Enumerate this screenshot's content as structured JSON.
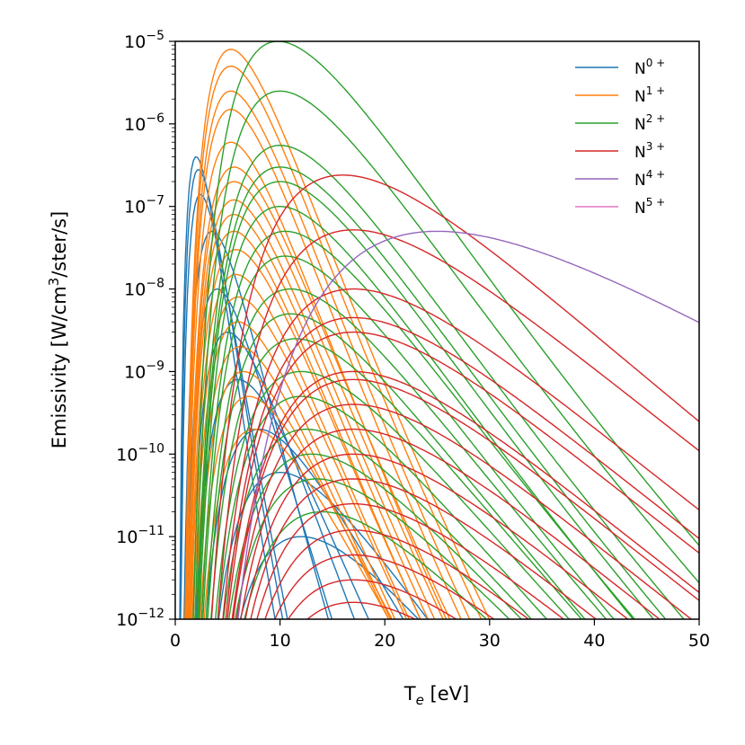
{
  "chart_data": {
    "type": "line",
    "xlabel": {
      "base": "T",
      "sub": "e",
      "suffix": " [eV]"
    },
    "ylabel": {
      "before": "Emissivity [W/cm",
      "sup": "3",
      "after": "/ster/s]"
    },
    "xlim": [
      0,
      50
    ],
    "ylim": [
      1e-12,
      1e-05
    ],
    "yscale": "log",
    "grid": false,
    "legend_position": "top-right",
    "x_ticks": [
      "0",
      "10",
      "20",
      "30",
      "40",
      "50"
    ],
    "y_ticks": [
      {
        "base": "10",
        "exp": "−12",
        "value": 1e-12
      },
      {
        "base": "10",
        "exp": "−11",
        "value": 1e-11
      },
      {
        "base": "10",
        "exp": "−10",
        "value": 1e-10
      },
      {
        "base": "10",
        "exp": "−9",
        "value": 1e-09
      },
      {
        "base": "10",
        "exp": "−8",
        "value": 1e-08
      },
      {
        "base": "10",
        "exp": "−7",
        "value": 1e-07
      },
      {
        "base": "10",
        "exp": "−6",
        "value": 1e-06
      },
      {
        "base": "10",
        "exp": "−5",
        "value": 1e-05
      }
    ],
    "series": [
      {
        "name": "N",
        "charge": "0 +",
        "color": "#1f77b4",
        "lines": [
          {
            "peak_x": 2.0,
            "peak_y": 4e-07
          },
          {
            "peak_x": 2.2,
            "peak_y": 2.8e-07
          },
          {
            "peak_x": 2.4,
            "peak_y": 1.4e-07
          },
          {
            "peak_x": 3.5,
            "peak_y": 5e-08
          },
          {
            "peak_x": 4.0,
            "peak_y": 1e-08
          },
          {
            "peak_x": 5.0,
            "peak_y": 3e-09
          },
          {
            "peak_x": 6.0,
            "peak_y": 8e-10
          },
          {
            "peak_x": 8.0,
            "peak_y": 2e-10
          },
          {
            "peak_x": 10.0,
            "peak_y": 6e-11
          },
          {
            "peak_x": 12.0,
            "peak_y": 1e-11
          }
        ]
      },
      {
        "name": "N",
        "charge": "1 +",
        "color": "#ff7f0e",
        "lines": [
          {
            "peak_x": 5.3,
            "peak_y": 8e-06
          },
          {
            "peak_x": 5.3,
            "peak_y": 5e-06
          },
          {
            "peak_x": 5.3,
            "peak_y": 2.5e-06
          },
          {
            "peak_x": 5.3,
            "peak_y": 1.5e-06
          },
          {
            "peak_x": 5.3,
            "peak_y": 6e-07
          },
          {
            "peak_x": 5.6,
            "peak_y": 3e-07
          },
          {
            "peak_x": 5.6,
            "peak_y": 2e-07
          },
          {
            "peak_x": 5.6,
            "peak_y": 1.2e-07
          },
          {
            "peak_x": 5.6,
            "peak_y": 8e-08
          },
          {
            "peak_x": 5.6,
            "peak_y": 5e-08
          },
          {
            "peak_x": 5.8,
            "peak_y": 3e-08
          },
          {
            "peak_x": 5.8,
            "peak_y": 1.5e-08
          },
          {
            "peak_x": 6.0,
            "peak_y": 8e-09
          },
          {
            "peak_x": 6.0,
            "peak_y": 4e-09
          },
          {
            "peak_x": 6.2,
            "peak_y": 2e-09
          },
          {
            "peak_x": 6.5,
            "peak_y": 1e-09
          },
          {
            "peak_x": 7.0,
            "peak_y": 5e-10
          },
          {
            "peak_x": 7.5,
            "peak_y": 2e-10
          }
        ]
      },
      {
        "name": "N",
        "charge": "2 +",
        "color": "#2ca02c",
        "lines": [
          {
            "peak_x": 9.8,
            "peak_y": 1e-05
          },
          {
            "peak_x": 10.0,
            "peak_y": 2.5e-06
          },
          {
            "peak_x": 10.0,
            "peak_y": 5.5e-07
          },
          {
            "peak_x": 10.0,
            "peak_y": 3e-07
          },
          {
            "peak_x": 10.0,
            "peak_y": 2e-07
          },
          {
            "peak_x": 10.0,
            "peak_y": 1e-07
          },
          {
            "peak_x": 10.5,
            "peak_y": 5e-08
          },
          {
            "peak_x": 10.5,
            "peak_y": 2.5e-08
          },
          {
            "peak_x": 11.0,
            "peak_y": 1e-08
          },
          {
            "peak_x": 11.0,
            "peak_y": 5e-09
          },
          {
            "peak_x": 11.5,
            "peak_y": 2.5e-09
          },
          {
            "peak_x": 12.0,
            "peak_y": 1e-09
          },
          {
            "peak_x": 12.0,
            "peak_y": 5e-10
          },
          {
            "peak_x": 12.5,
            "peak_y": 2e-10
          },
          {
            "peak_x": 13.0,
            "peak_y": 1e-10
          },
          {
            "peak_x": 13.5,
            "peak_y": 5e-11
          },
          {
            "peak_x": 14.0,
            "peak_y": 2e-11
          }
        ]
      },
      {
        "name": "N",
        "charge": "3 +",
        "color": "#d62728",
        "lines": [
          {
            "peak_x": 16.0,
            "peak_y": 2.4e-07
          },
          {
            "peak_x": 17.0,
            "peak_y": 5.2e-08
          },
          {
            "peak_x": 17.0,
            "peak_y": 1e-08
          },
          {
            "peak_x": 17.0,
            "peak_y": 4.5e-09
          },
          {
            "peak_x": 17.0,
            "peak_y": 3e-09
          },
          {
            "peak_x": 17.0,
            "peak_y": 1e-09
          },
          {
            "peak_x": 17.0,
            "peak_y": 8e-10
          },
          {
            "peak_x": 17.0,
            "peak_y": 4e-10
          },
          {
            "peak_x": 17.0,
            "peak_y": 2e-10
          },
          {
            "peak_x": 17.0,
            "peak_y": 1e-10
          },
          {
            "peak_x": 17.0,
            "peak_y": 5e-11
          },
          {
            "peak_x": 17.0,
            "peak_y": 2.5e-11
          },
          {
            "peak_x": 17.0,
            "peak_y": 1.2e-11
          },
          {
            "peak_x": 17.0,
            "peak_y": 6e-12
          },
          {
            "peak_x": 17.0,
            "peak_y": 3e-12
          },
          {
            "peak_x": 17.0,
            "peak_y": 1.6e-12
          }
        ]
      },
      {
        "name": "N",
        "charge": "4 +",
        "color": "#9467bd",
        "lines": [
          {
            "peak_x": 25.0,
            "peak_y": 5e-08
          }
        ]
      },
      {
        "name": "N",
        "charge": "5 +",
        "color": "#e377c2",
        "lines": []
      }
    ]
  }
}
